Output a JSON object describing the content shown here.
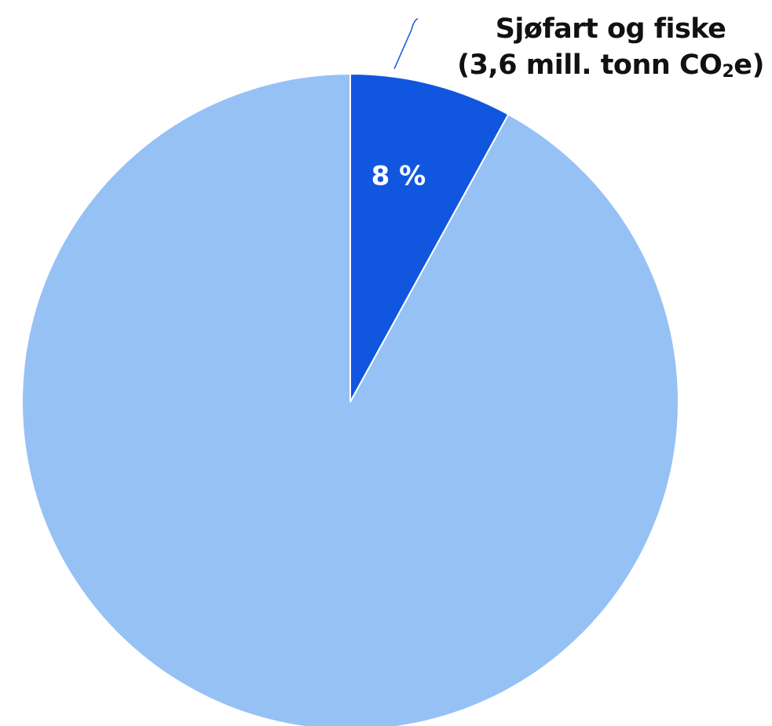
{
  "colors": {
    "highlight": "#1156DE",
    "rest": "#96C1F5",
    "connector": "#1156DE",
    "label_text": "#111111",
    "pct_text": "#FFFFFF"
  },
  "chart_data": {
    "type": "pie",
    "start_angle_deg": 0,
    "direction": "clockwise",
    "slices": [
      {
        "label_line1": "Sjøfart og fiske",
        "label_line2_prefix": "(3,6 mill. tonn CO",
        "label_line2_sub": "2",
        "label_line2_suffix": "e)",
        "value": 8,
        "percent_label": "8 %",
        "color": "#1156DE"
      },
      {
        "value": 92,
        "color": "#96C1F5"
      }
    ]
  }
}
